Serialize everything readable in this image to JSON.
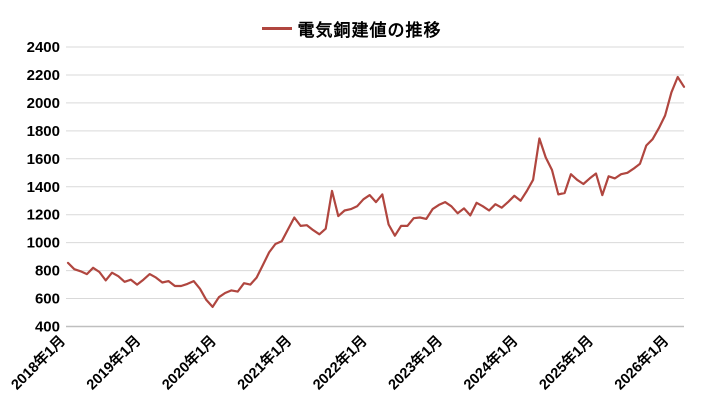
{
  "title": "電気銅建値の推移",
  "legend": {
    "label": "電気銅建値の推移"
  },
  "chart_data": {
    "type": "line",
    "title": "電気銅建値の推移",
    "legend_position": "top-center",
    "grid": "horizontal",
    "ylim": [
      400,
      2400
    ],
    "y_ticks": [
      400,
      600,
      800,
      1000,
      1200,
      1400,
      1600,
      1800,
      2000,
      2200,
      2400
    ],
    "x_tick_labels": [
      "2018年1月",
      "2019年1月",
      "2020年1月",
      "2021年1月",
      "2022年1月",
      "2023年1月",
      "2024年1月",
      "2025年1月",
      "2026年1月"
    ],
    "x_tick_month_indices": [
      0,
      12,
      24,
      36,
      48,
      60,
      72,
      84,
      96
    ],
    "x_start": "2018-01",
    "x_step_months": 1,
    "series": [
      {
        "name": "電気銅建値の推移",
        "color": "#b0463f",
        "values": [
          855,
          810,
          795,
          775,
          820,
          790,
          730,
          785,
          760,
          720,
          735,
          700,
          735,
          775,
          750,
          715,
          725,
          690,
          690,
          705,
          725,
          670,
          590,
          540,
          610,
          640,
          658,
          650,
          710,
          700,
          750,
          840,
          930,
          990,
          1010,
          1095,
          1180,
          1120,
          1125,
          1090,
          1060,
          1100,
          1370,
          1190,
          1230,
          1240,
          1260,
          1310,
          1340,
          1290,
          1345,
          1130,
          1050,
          1120,
          1120,
          1175,
          1180,
          1170,
          1240,
          1270,
          1290,
          1260,
          1210,
          1245,
          1195,
          1285,
          1260,
          1230,
          1275,
          1250,
          1290,
          1335,
          1300,
          1370,
          1450,
          1745,
          1610,
          1520,
          1345,
          1355,
          1490,
          1450,
          1420,
          1460,
          1495,
          1340,
          1475,
          1460,
          1490,
          1500,
          1530,
          1565,
          1695,
          1740,
          1820,
          1910,
          2075,
          2185,
          2115
        ]
      }
    ],
    "colors": {
      "line": "#b0463f",
      "grid": "#d9d9d9",
      "axis": "#bfbfbf",
      "text": "#000000",
      "background": "#ffffff"
    }
  }
}
